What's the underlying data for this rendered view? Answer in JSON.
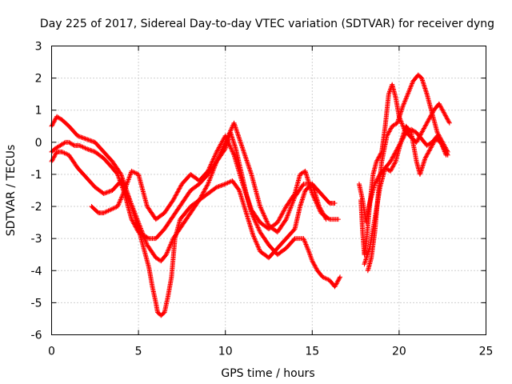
{
  "chart_data": {
    "type": "scatter",
    "title": "Day 225 of 2017, Sidereal Day-to-day VTEC variation (SDTVAR) for receiver dyng",
    "xlabel": "GPS time / hours",
    "ylabel": "SDTVAR / TECUs",
    "xlim": [
      0,
      25
    ],
    "ylim": [
      -6,
      3
    ],
    "xticks": [
      "0",
      "5",
      "10",
      "15",
      "20",
      "25"
    ],
    "yticks": [
      "-6",
      "-5",
      "-4",
      "-3",
      "-2",
      "-1",
      "0",
      "1",
      "2",
      "3"
    ],
    "grid": true,
    "marker": "plus",
    "color": "#ff0000",
    "series": [
      {
        "x": [
          0.0,
          0.2,
          0.5,
          0.8,
          1.0,
          1.3,
          1.6,
          2.0,
          2.5,
          3.0,
          3.5,
          3.8,
          4.0,
          4.2,
          4.4,
          4.6,
          4.8,
          5.0,
          5.3,
          5.6,
          6.0,
          6.5,
          7.0,
          7.5,
          8.0,
          8.5,
          9.0,
          9.5,
          10.0,
          10.3,
          10.6,
          10.9,
          11.2,
          11.5,
          12.0,
          12.5,
          13.0,
          13.5,
          14.0,
          14.5,
          14.8,
          15.0,
          15.3,
          15.6,
          16.0,
          16.3,
          16.6
        ],
        "y": [
          -0.3,
          -0.2,
          -0.1,
          0.0,
          0.0,
          -0.1,
          -0.1,
          -0.2,
          -0.3,
          -0.5,
          -0.8,
          -1.0,
          -1.3,
          -1.6,
          -2.0,
          -2.4,
          -2.6,
          -2.8,
          -2.9,
          -3.0,
          -3.0,
          -2.7,
          -2.3,
          -1.9,
          -1.5,
          -1.3,
          -1.0,
          -0.6,
          -0.2,
          0.3,
          -0.2,
          -0.9,
          -1.6,
          -2.2,
          -2.8,
          -3.2,
          -3.5,
          -3.3,
          -3.0,
          -3.0,
          -3.4,
          -3.7,
          -4.0,
          -4.2,
          -4.3,
          -4.5,
          -4.2
        ]
      },
      {
        "x": [
          0.0,
          0.3,
          0.6,
          1.0,
          1.5,
          2.0,
          2.5,
          3.0,
          3.5,
          4.0,
          4.5,
          5.0,
          5.5,
          6.0,
          6.3,
          6.6,
          7.0,
          7.5,
          8.0,
          8.5,
          9.0,
          9.5,
          10.0,
          10.5,
          11.0,
          11.5,
          12.0,
          12.5,
          13.0,
          13.5,
          14.0,
          14.5,
          15.0,
          15.5,
          16.0,
          16.3
        ],
        "y": [
          0.5,
          0.8,
          0.7,
          0.5,
          0.2,
          0.1,
          0.0,
          -0.3,
          -0.6,
          -1.0,
          -1.8,
          -2.5,
          -3.2,
          -3.6,
          -3.7,
          -3.5,
          -3.0,
          -2.6,
          -2.2,
          -1.8,
          -1.3,
          -0.6,
          0.0,
          0.6,
          -0.2,
          -1.0,
          -2.0,
          -2.6,
          -2.8,
          -2.4,
          -1.7,
          -1.3,
          -1.3,
          -1.6,
          -1.9,
          -1.9
        ]
      },
      {
        "x": [
          0.0,
          0.3,
          0.6,
          1.0,
          1.5,
          2.0,
          2.5,
          3.0,
          3.5,
          4.0,
          4.5,
          5.0,
          5.3,
          5.6,
          5.8,
          6.0,
          6.1,
          6.3,
          6.5,
          6.7,
          6.9,
          7.1,
          7.4,
          7.7,
          8.0,
          8.5,
          9.0,
          9.5,
          10.0,
          10.4,
          10.8,
          11.2,
          11.6,
          12.0,
          12.5,
          13.0,
          13.5,
          14.0,
          14.3,
          14.6,
          15.0,
          15.4,
          15.8
        ],
        "y": [
          -0.6,
          -0.3,
          -0.3,
          -0.4,
          -0.8,
          -1.1,
          -1.4,
          -1.6,
          -1.5,
          -1.2,
          -1.8,
          -2.7,
          -3.3,
          -3.9,
          -4.5,
          -5.0,
          -5.3,
          -5.4,
          -5.3,
          -4.8,
          -4.2,
          -3.0,
          -2.4,
          -2.2,
          -2.0,
          -1.8,
          -1.6,
          -1.4,
          -1.3,
          -1.2,
          -1.5,
          -2.2,
          -2.9,
          -3.4,
          -3.6,
          -3.3,
          -3.0,
          -2.7,
          -2.0,
          -1.5,
          -1.3,
          -2.0,
          -2.4
        ]
      },
      {
        "x": [
          2.3,
          2.7,
          3.0,
          3.4,
          3.8,
          4.2,
          4.6,
          5.0,
          5.5,
          6.0,
          6.5,
          7.0,
          7.5,
          8.0,
          8.5,
          9.0,
          9.5,
          10.0,
          10.5,
          11.0,
          11.5,
          12.0,
          12.5,
          13.0,
          13.5,
          14.0,
          14.3,
          14.6,
          15.0,
          15.5,
          16.0,
          16.5
        ],
        "y": [
          -2.0,
          -2.2,
          -2.2,
          -2.1,
          -2.0,
          -1.5,
          -0.9,
          -1.0,
          -2.0,
          -2.4,
          -2.2,
          -1.8,
          -1.3,
          -1.0,
          -1.2,
          -0.9,
          -0.3,
          0.2,
          -0.4,
          -1.3,
          -2.1,
          -2.5,
          -2.7,
          -2.5,
          -2.0,
          -1.6,
          -1.0,
          -0.9,
          -1.6,
          -2.2,
          -2.4,
          -2.4
        ]
      },
      {
        "x": [
          17.8,
          17.9,
          18.0,
          18.1,
          18.3,
          18.5,
          18.7,
          19.0,
          19.2,
          19.4,
          19.6,
          19.8,
          20.0,
          20.3,
          20.6,
          21.0,
          21.3,
          21.6,
          22.0,
          22.3,
          22.6,
          22.9
        ],
        "y": [
          -1.8,
          -2.8,
          -3.5,
          -3.2,
          -2.0,
          -1.0,
          -0.6,
          -0.3,
          0.5,
          1.5,
          1.8,
          1.4,
          0.8,
          0.4,
          0.2,
          0.0,
          0.3,
          0.6,
          1.0,
          1.2,
          0.9,
          0.6
        ]
      },
      {
        "x": [
          18.2,
          18.4,
          18.6,
          18.8,
          19.0,
          19.3,
          19.6,
          19.9,
          20.2,
          20.5,
          20.8,
          21.1,
          21.3,
          21.6,
          21.9,
          22.2,
          22.5,
          22.8
        ],
        "y": [
          -4.0,
          -3.6,
          -2.8,
          -1.6,
          -0.6,
          0.2,
          0.5,
          0.6,
          1.1,
          1.5,
          1.9,
          2.1,
          2.0,
          1.5,
          0.9,
          0.3,
          0.0,
          -0.3
        ]
      },
      {
        "x": [
          18.0,
          18.3,
          18.6,
          18.9,
          19.2,
          19.5,
          19.8,
          20.1,
          20.4,
          20.7,
          21.0,
          21.2,
          21.5,
          21.8,
          22.1,
          22.4,
          22.7
        ],
        "y": [
          -3.8,
          -3.3,
          -2.4,
          -1.4,
          -0.8,
          -0.6,
          -0.3,
          0.0,
          0.5,
          0.3,
          -0.6,
          -1.0,
          -0.5,
          -0.2,
          0.1,
          0.0,
          -0.4
        ]
      },
      {
        "x": [
          17.7,
          17.9,
          18.1,
          18.3,
          18.6,
          18.9,
          19.2,
          19.5,
          19.8,
          20.1,
          20.4,
          20.7,
          21.0,
          21.3,
          21.6,
          21.9,
          22.2,
          22.5,
          22.8
        ],
        "y": [
          -1.3,
          -1.8,
          -2.5,
          -1.9,
          -1.3,
          -1.0,
          -0.8,
          -0.9,
          -0.6,
          0.0,
          0.3,
          0.4,
          0.3,
          0.1,
          -0.1,
          0.0,
          0.2,
          -0.1,
          -0.4
        ]
      }
    ]
  }
}
